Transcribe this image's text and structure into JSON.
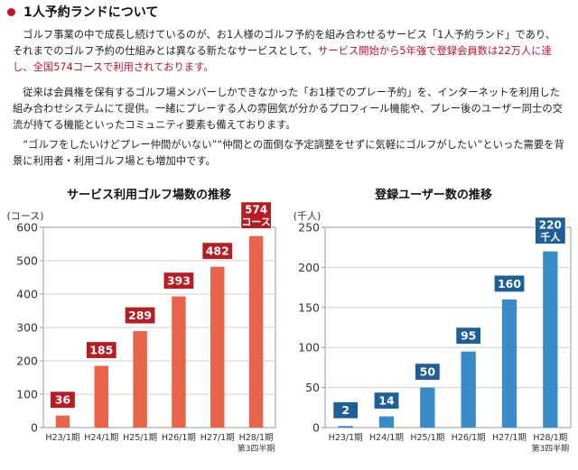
{
  "heading": "1人予約ランドについて",
  "paragraphs": {
    "p1_a": "ゴルフ事業の中で成長し続けているのが、お1人様のゴルフ予約を組み合わせるサービス「1人予約ランド」であり、それまでのゴルフ予約の仕組みとは異なる新たなサービスとして、",
    "p1_b": "サービス開始から5年強で登録会員数は22万人に達し、全国574コースで利用されております。",
    "p2": "従来は会員権を保有するゴルフ場メンバーしかできなかった「お1様でのプレー予約」を、インターネットを利用した組み合わせシステムにて提供。一緒にプレーする人の雰囲気が分かるプロフィール機能や、プレー後のユーザー同士の交流が持てる機能といったコミュニティ要素も備えております。",
    "p3": "“ゴルフをしたいけどプレー仲間がいない”“仲間との面倒な予定調整をせずに気軽にゴルフがしたい”といった需要を背景に利用者・利用ゴルフ場とも増加中です。"
  },
  "colors": {
    "accent": "#c8102e",
    "left_bar": "#e8634a",
    "left_label": "#b81c22",
    "right_bar": "#3a8cc8",
    "right_label": "#1f5f99"
  },
  "chart_data": [
    {
      "type": "bar",
      "title": "サービス利用ゴルフ場数の推移",
      "ylabel": "(コース)",
      "ylim": [
        0,
        600
      ],
      "yticks": [
        "0",
        "100",
        "200",
        "300",
        "400",
        "500",
        "600"
      ],
      "categories": [
        "H23/1期",
        "H24/1期",
        "H25/1期",
        "H26/1期",
        "H27/1期",
        "H28/1期"
      ],
      "category_notes": [
        "",
        "",
        "",
        "",
        "",
        "第3四半期"
      ],
      "values": [
        36,
        185,
        289,
        393,
        482,
        574
      ],
      "data_labels": [
        "36",
        "185",
        "289",
        "393",
        "482",
        "574"
      ],
      "last_label_unit": "コース",
      "grid": true
    },
    {
      "type": "bar",
      "title": "登録ユーザー数の推移",
      "ylabel": "(千人)",
      "ylim": [
        0,
        250
      ],
      "yticks": [
        "0",
        "50",
        "100",
        "150",
        "200",
        "250"
      ],
      "categories": [
        "H23/1期",
        "H24/1期",
        "H25/1期",
        "H26/1期",
        "H27/1期",
        "H28/1期"
      ],
      "category_notes": [
        "",
        "",
        "",
        "",
        "",
        "第3四半期"
      ],
      "values": [
        2,
        14,
        50,
        95,
        160,
        220
      ],
      "data_labels": [
        "2",
        "14",
        "50",
        "95",
        "160",
        "220"
      ],
      "last_label_unit": "千人",
      "grid": true
    }
  ]
}
